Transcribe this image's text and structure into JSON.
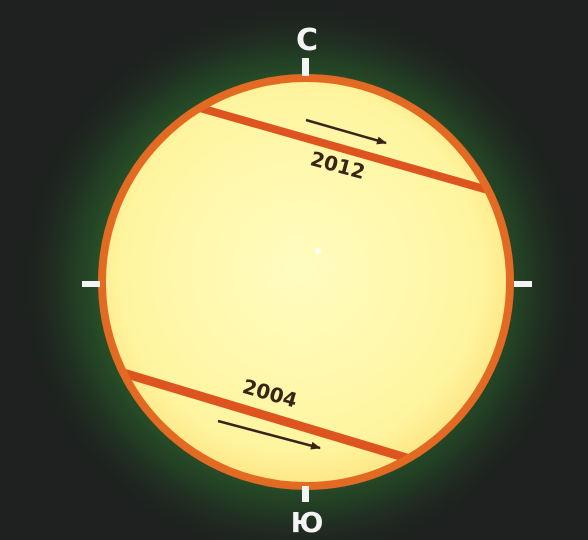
{
  "labels": {
    "north": "С",
    "south": "Ю"
  },
  "transits": [
    {
      "year": "2012"
    },
    {
      "year": "2004"
    }
  ],
  "colors": {
    "background": "#1e211f",
    "glow": "#2f6a2c",
    "sun_disk": "#fff7a6",
    "limb": "#e36a22",
    "transit_path": "#de5420",
    "tick": "#f4f4f4",
    "year_text": "#3a2417"
  }
}
